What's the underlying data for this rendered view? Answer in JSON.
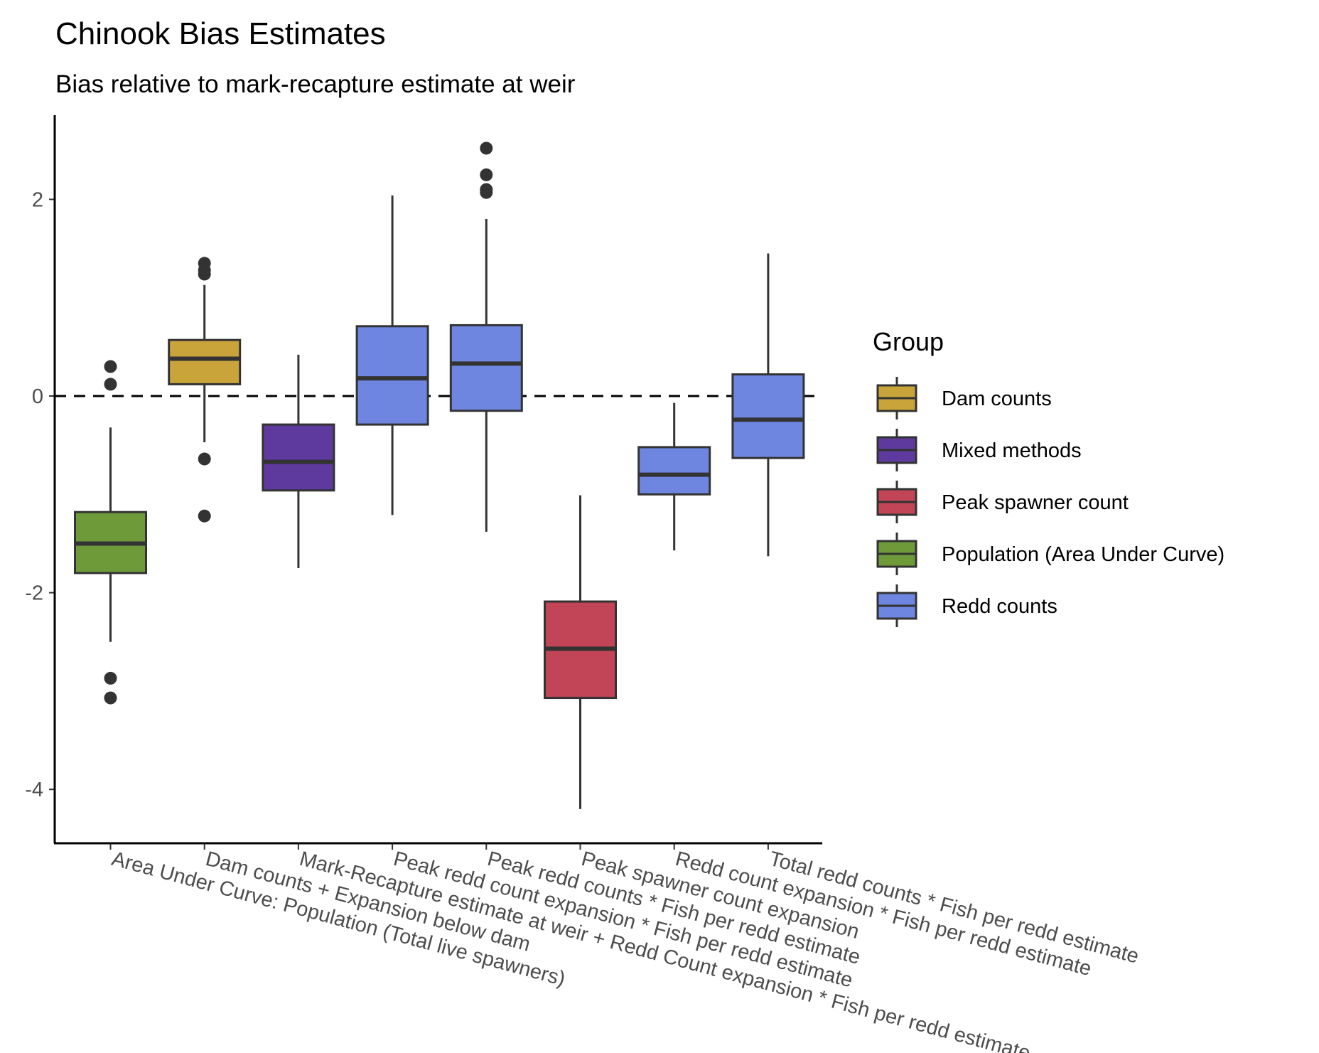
{
  "chart_data": {
    "type": "boxplot",
    "title": "Chinook Bias Estimates",
    "subtitle": "Bias relative to mark-recapture estimate at weir",
    "xlabel": "",
    "ylabel": "",
    "ylim": [
      -4.5,
      2.85
    ],
    "yticks": [
      -4,
      -2,
      0,
      2
    ],
    "reference_line": 0,
    "grid": false,
    "legend_position": "right",
    "legend": {
      "title": "Group",
      "entries": [
        {
          "name": "Dam counts",
          "color": "#C9A43A"
        },
        {
          "name": "Mixed methods",
          "color": "#5E3A9E"
        },
        {
          "name": "Peak spawner count",
          "color": "#C24457"
        },
        {
          "name": "Population (Area Under Curve)",
          "color": "#6E9A3A"
        },
        {
          "name": "Redd counts",
          "color": "#6F86E0"
        }
      ]
    },
    "boxes": [
      {
        "category": "Area Under Curve: Population (Total live spawners)",
        "group": "Population (Area Under Curve)",
        "lower_whisker": -2.5,
        "q1": -1.8,
        "median": -1.5,
        "q3": -1.18,
        "upper_whisker": -0.32,
        "outliers": [
          0.3,
          0.12,
          -2.87,
          -3.07
        ]
      },
      {
        "category": "Dam counts + Expansion below dam",
        "group": "Dam counts",
        "lower_whisker": -0.47,
        "q1": 0.12,
        "median": 0.38,
        "q3": 0.57,
        "upper_whisker": 1.13,
        "outliers": [
          1.35,
          1.28,
          1.24,
          -0.64,
          -1.22
        ]
      },
      {
        "category": "Mark-Recapture estimate at weir + Redd Count expansion * Fish per redd estimate",
        "group": "Mixed methods",
        "lower_whisker": -1.75,
        "q1": -0.96,
        "median": -0.67,
        "q3": -0.29,
        "upper_whisker": 0.42,
        "outliers": []
      },
      {
        "category": "Peak redd count expansion * Fish per redd estimate",
        "group": "Redd counts",
        "lower_whisker": -1.21,
        "q1": -0.29,
        "median": 0.18,
        "q3": 0.71,
        "upper_whisker": 2.04,
        "outliers": []
      },
      {
        "category": "Peak redd counts * Fish per redd estimate",
        "group": "Redd counts",
        "lower_whisker": -1.38,
        "q1": -0.15,
        "median": 0.33,
        "q3": 0.72,
        "upper_whisker": 1.8,
        "outliers": [
          2.52,
          2.25,
          2.1,
          2.07
        ]
      },
      {
        "category": "Peak spawner count expansion",
        "group": "Peak spawner count",
        "lower_whisker": -4.2,
        "q1": -3.07,
        "median": -2.57,
        "q3": -2.09,
        "upper_whisker": -1.01,
        "outliers": []
      },
      {
        "category": "Redd count expansion * Fish per redd estimate",
        "group": "Redd counts",
        "lower_whisker": -1.57,
        "q1": -1.0,
        "median": -0.8,
        "q3": -0.52,
        "upper_whisker": -0.07,
        "outliers": []
      },
      {
        "category": "Total redd counts * Fish per redd estimate",
        "group": "Redd counts",
        "lower_whisker": -1.63,
        "q1": -0.63,
        "median": -0.24,
        "q3": 0.22,
        "upper_whisker": 1.45,
        "outliers": []
      }
    ]
  }
}
